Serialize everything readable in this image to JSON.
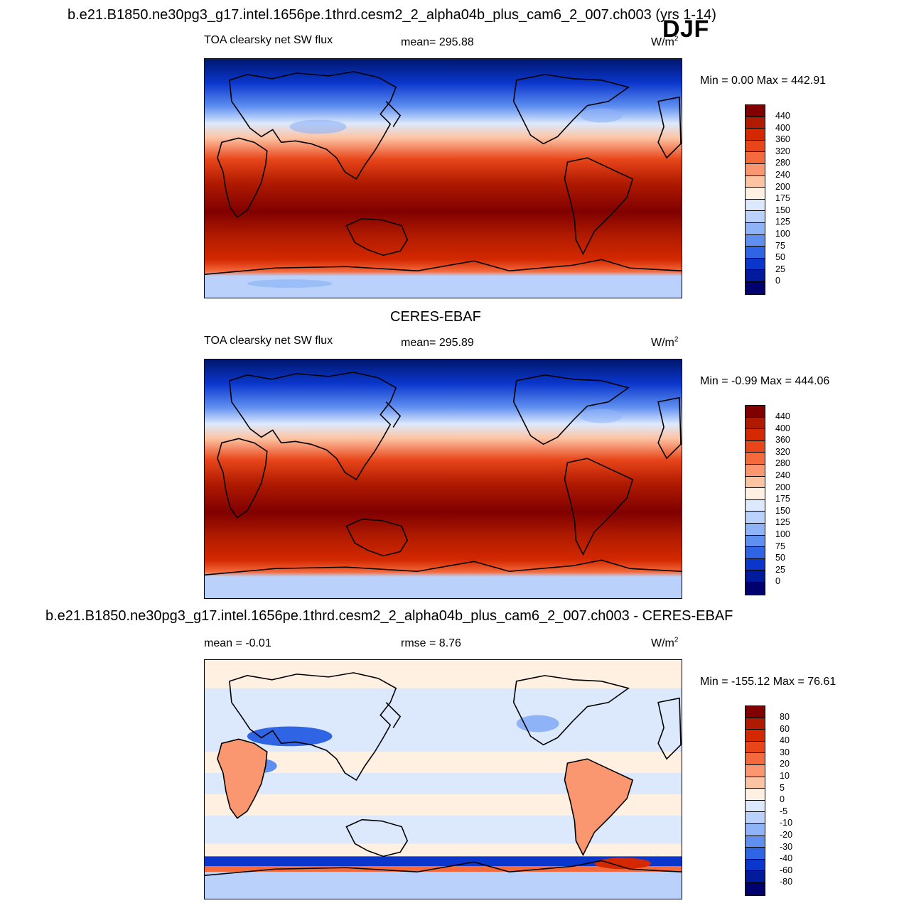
{
  "header": {
    "run_title": "b.e21.B1850.ne30pg3_g17.intel.1656pe.1thrd.cesm2_2_alpha04b_plus_cam6_2_007.ch003 (yrs 1-14)",
    "season": "DJF"
  },
  "panels": [
    {
      "variable": "TOA clearsky net SW flux",
      "stat": "mean= 295.88",
      "units": "W/m",
      "units_sup": "2",
      "minmax": "Min =   0.00 Max = 442.91",
      "scale": "abs"
    },
    {
      "dataset_title": "CERES-EBAF",
      "variable": "TOA clearsky net SW flux",
      "stat": "mean= 295.89",
      "units": "W/m",
      "units_sup": "2",
      "minmax": "Min =  -0.99 Max = 444.06",
      "scale": "abs"
    },
    {
      "diff_title": "b.e21.B1850.ne30pg3_g17.intel.1656pe.1thrd.cesm2_2_alpha04b_plus_cam6_2_007.ch003 - CERES-EBAF",
      "stat": "mean =  -0.01",
      "stat2": "rmse =   8.76",
      "units": "W/m",
      "units_sup": "2",
      "minmax": "Min = -155.12 Max =  76.61",
      "scale": "diff"
    }
  ],
  "colorbars": {
    "abs": {
      "labels": [
        "440",
        "400",
        "360",
        "320",
        "280",
        "240",
        "200",
        "175",
        "150",
        "125",
        "100",
        "75",
        "50",
        "25",
        "0"
      ],
      "colors": [
        "#800000",
        "#b01a00",
        "#d42800",
        "#e8461a",
        "#f46a3c",
        "#fa9670",
        "#fdc4a4",
        "#fff0e2",
        "#dce9fd",
        "#bad2fb",
        "#8fb3f7",
        "#5f8ff0",
        "#2f64e4",
        "#0a36cc",
        "#001a9c",
        "#00006e"
      ]
    },
    "diff": {
      "labels": [
        "80",
        "60",
        "40",
        "30",
        "20",
        "10",
        "5",
        "0",
        "-5",
        "-10",
        "-20",
        "-30",
        "-40",
        "-60",
        "-80"
      ],
      "colors": [
        "#800000",
        "#b01a00",
        "#d42800",
        "#e8461a",
        "#f46a3c",
        "#fa9670",
        "#fdc4a4",
        "#fff0e2",
        "#dce9fd",
        "#bad2fb",
        "#8fb3f7",
        "#5f8ff0",
        "#2f64e4",
        "#0a36cc",
        "#001a9c",
        "#00006e"
      ]
    }
  }
}
